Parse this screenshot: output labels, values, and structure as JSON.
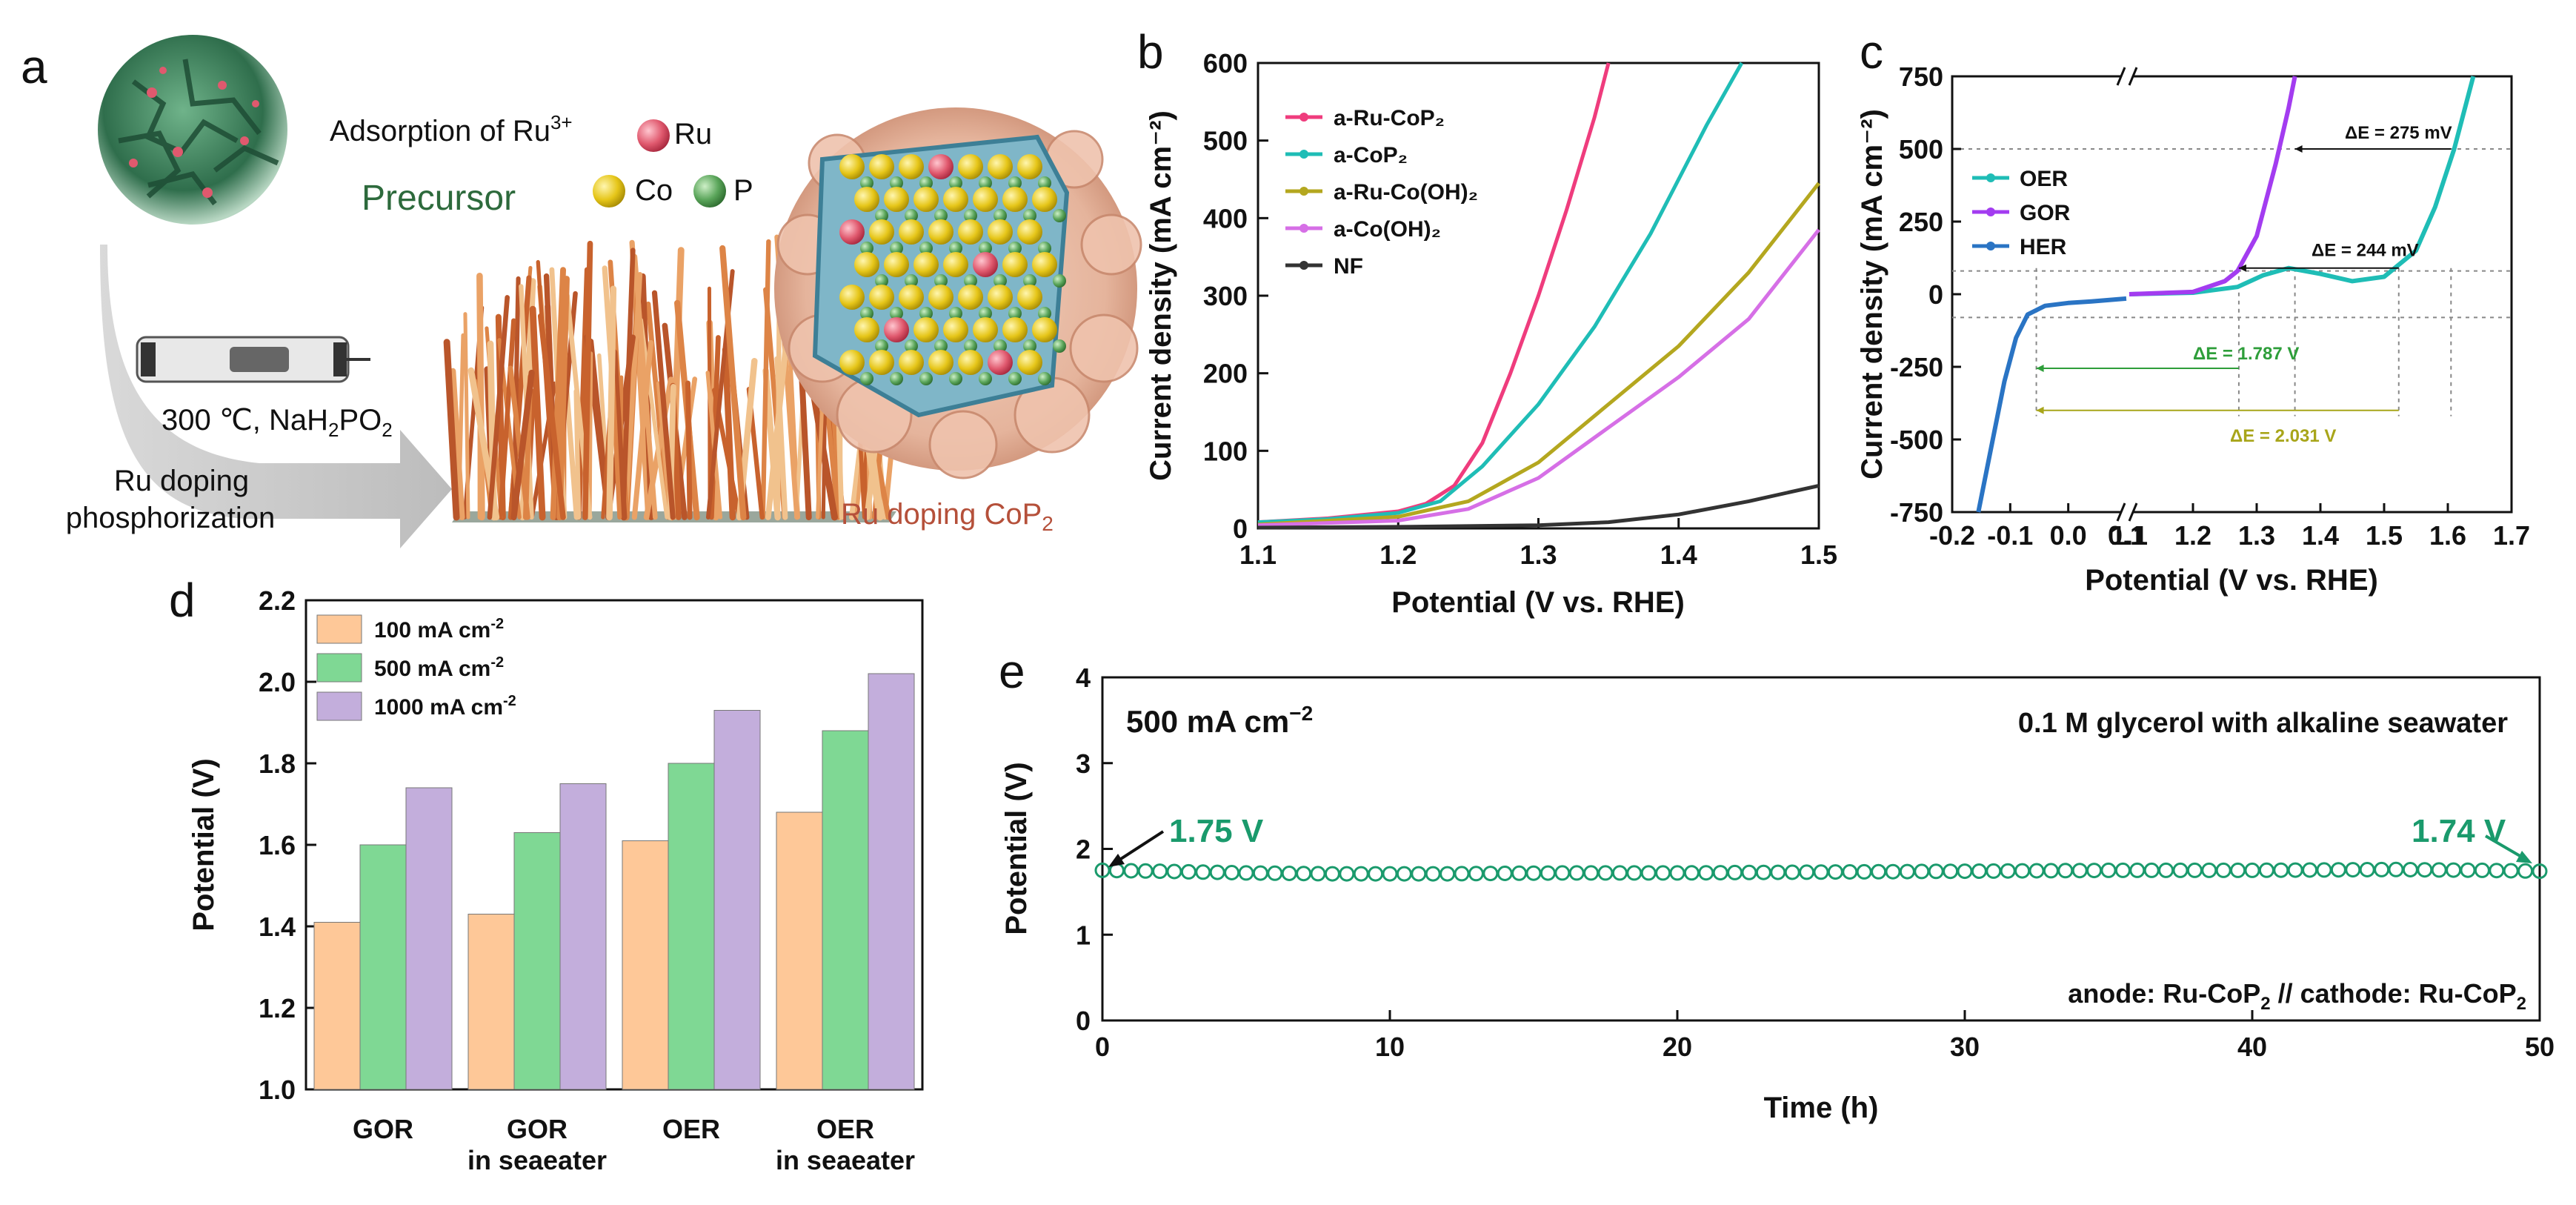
{
  "panel_labels": {
    "a": "a",
    "b": "b",
    "c": "c",
    "d": "d",
    "e": "e"
  },
  "schematic": {
    "adsorption_text": "Adsorption of Ru",
    "adsorption_sup": "3+",
    "precursor": "Precursor",
    "ru": "Ru",
    "co": "Co",
    "p": "P",
    "condition_pre": "300 ℃, NaH",
    "condition_sub1": "2",
    "condition_mid": "PO",
    "condition_sub2": "2",
    "step1": "Ru doping",
    "step2": "phosphorization",
    "product_pre": "Ru doping CoP",
    "product_sub": "2",
    "colors": {
      "ru": "#e0596e",
      "co": "#e6c619",
      "p": "#5aa55a",
      "precursor": "#2d6a3c",
      "product": "#b5503a"
    }
  },
  "chart_data": [
    {
      "id": "b",
      "type": "line",
      "xlabel": "Potential (V vs. RHE)",
      "ylabel": "Current density (mA cm⁻²)",
      "xlim": [
        1.1,
        1.5
      ],
      "ylim": [
        0,
        600
      ],
      "xticks": [
        "1.1",
        "1.2",
        "1.3",
        "1.4",
        "1.5"
      ],
      "yticks": [
        "0",
        "100",
        "200",
        "300",
        "400",
        "500",
        "600"
      ],
      "series": [
        {
          "name": "a-Ru-CoP₂",
          "color": "#ef3c7d",
          "x": [
            1.1,
            1.15,
            1.2,
            1.22,
            1.24,
            1.26,
            1.28,
            1.3,
            1.32,
            1.34,
            1.35
          ],
          "y": [
            8,
            13,
            22,
            32,
            55,
            110,
            200,
            300,
            410,
            530,
            600
          ]
        },
        {
          "name": "a-CoP₂",
          "color": "#1fbdb6",
          "x": [
            1.1,
            1.15,
            1.2,
            1.23,
            1.26,
            1.3,
            1.34,
            1.38,
            1.42,
            1.445
          ],
          "y": [
            8,
            12,
            20,
            35,
            80,
            160,
            260,
            380,
            520,
            600
          ]
        },
        {
          "name": "a-Ru-Co(OH)₂",
          "color": "#b4a71f",
          "x": [
            1.1,
            1.2,
            1.25,
            1.3,
            1.35,
            1.4,
            1.45,
            1.5
          ],
          "y": [
            5,
            15,
            35,
            85,
            160,
            235,
            330,
            445
          ]
        },
        {
          "name": "a-Co(OH)₂",
          "color": "#d66fe6",
          "x": [
            1.1,
            1.2,
            1.25,
            1.3,
            1.35,
            1.4,
            1.45,
            1.5
          ],
          "y": [
            4,
            10,
            25,
            65,
            130,
            195,
            270,
            385
          ]
        },
        {
          "name": "NF",
          "color": "#333333",
          "x": [
            1.1,
            1.2,
            1.3,
            1.35,
            1.4,
            1.45,
            1.5
          ],
          "y": [
            1,
            2,
            4,
            8,
            18,
            35,
            55
          ]
        }
      ]
    },
    {
      "id": "c",
      "type": "line",
      "xlabel": "Potential (V vs. RHE)",
      "ylabel": "Current density (mA cm⁻²)",
      "ylim": [
        -750,
        750
      ],
      "break": {
        "left": [
          -0.2,
          0.1
        ],
        "right": [
          1.1,
          1.7
        ]
      },
      "xticks": [
        "-0.2",
        "-0.1",
        "0.0",
        "0.1",
        "1.1",
        "1.2",
        "1.3",
        "1.4",
        "1.5",
        "1.6",
        "1.7"
      ],
      "yticks": [
        "-750",
        "-500",
        "-250",
        "0",
        "250",
        "500",
        "750"
      ],
      "series": [
        {
          "name": "OER",
          "color": "#1fbdb6",
          "x": [
            1.1,
            1.2,
            1.27,
            1.31,
            1.35,
            1.4,
            1.45,
            1.5,
            1.55,
            1.58,
            1.61,
            1.64
          ],
          "y": [
            0,
            5,
            25,
            65,
            90,
            70,
            45,
            60,
            150,
            300,
            500,
            750
          ]
        },
        {
          "name": "GOR",
          "color": "#a33cf0",
          "x": [
            1.1,
            1.2,
            1.25,
            1.27,
            1.3,
            1.33,
            1.35,
            1.36
          ],
          "y": [
            0,
            8,
            45,
            80,
            200,
            450,
            640,
            750
          ]
        },
        {
          "name": "HER",
          "color": "#2a74c4",
          "x": [
            -0.155,
            -0.13,
            -0.11,
            -0.09,
            -0.07,
            -0.04,
            0.0,
            0.04,
            0.1
          ],
          "y": [
            -750,
            -500,
            -300,
            -150,
            -70,
            -40,
            -30,
            -25,
            -15
          ]
        }
      ],
      "annotations": [
        "ΔE = 275 mV",
        "ΔE = 244 mV",
        "ΔE = 1.787 V",
        "ΔE = 2.031 V"
      ],
      "annotation_colors": [
        "#111111",
        "#111111",
        "#2e9e3a",
        "#a8a51a"
      ]
    },
    {
      "id": "d",
      "type": "bar",
      "ylabel": "Potential (V)",
      "ylim": [
        1.0,
        2.2
      ],
      "yticks": [
        "1.0",
        "1.2",
        "1.4",
        "1.6",
        "1.8",
        "2.0",
        "2.2"
      ],
      "categories": [
        [
          "GOR"
        ],
        [
          "GOR",
          "in seaeater"
        ],
        [
          "OER"
        ],
        [
          "OER",
          "in seaeater"
        ]
      ],
      "series": [
        {
          "name": "100 mA cm",
          "sup": "-2",
          "color": "#fec898",
          "values": [
            1.41,
            1.43,
            1.61,
            1.68
          ]
        },
        {
          "name": "500 mA cm",
          "sup": "-2",
          "color": "#7fd894",
          "values": [
            1.6,
            1.63,
            1.8,
            1.88
          ]
        },
        {
          "name": "1000 mA cm",
          "sup": "-2",
          "color": "#c3aedc",
          "values": [
            1.74,
            1.75,
            1.93,
            2.02
          ]
        }
      ]
    },
    {
      "id": "e",
      "type": "scatter",
      "xlabel": "Time (h)",
      "ylabel": "Potential (V)",
      "xlim": [
        0,
        50
      ],
      "ylim": [
        0,
        4
      ],
      "xticks": [
        "0",
        "10",
        "20",
        "30",
        "40",
        "50"
      ],
      "yticks": [
        "0",
        "1",
        "2",
        "3",
        "4"
      ],
      "color": "#1a9a6c",
      "series_points": {
        "x": [
          0,
          2,
          5,
          8,
          12,
          16,
          20,
          25,
          30,
          35,
          40,
          45,
          48,
          50
        ],
        "y": [
          1.75,
          1.74,
          1.72,
          1.71,
          1.71,
          1.72,
          1.72,
          1.73,
          1.74,
          1.75,
          1.75,
          1.76,
          1.75,
          1.74
        ]
      },
      "current_label": "500 mA cm",
      "current_sup": "−2",
      "electrolyte_label": "0.1 M glycerol with  alkaline seawater",
      "start_label": "1.75 V",
      "end_label": "1.74 V",
      "device_anode": "anode: Ru-CoP",
      "device_sub1": "2",
      "device_mid": "  // cathode: Ru-CoP",
      "device_sub2": "2"
    }
  ]
}
